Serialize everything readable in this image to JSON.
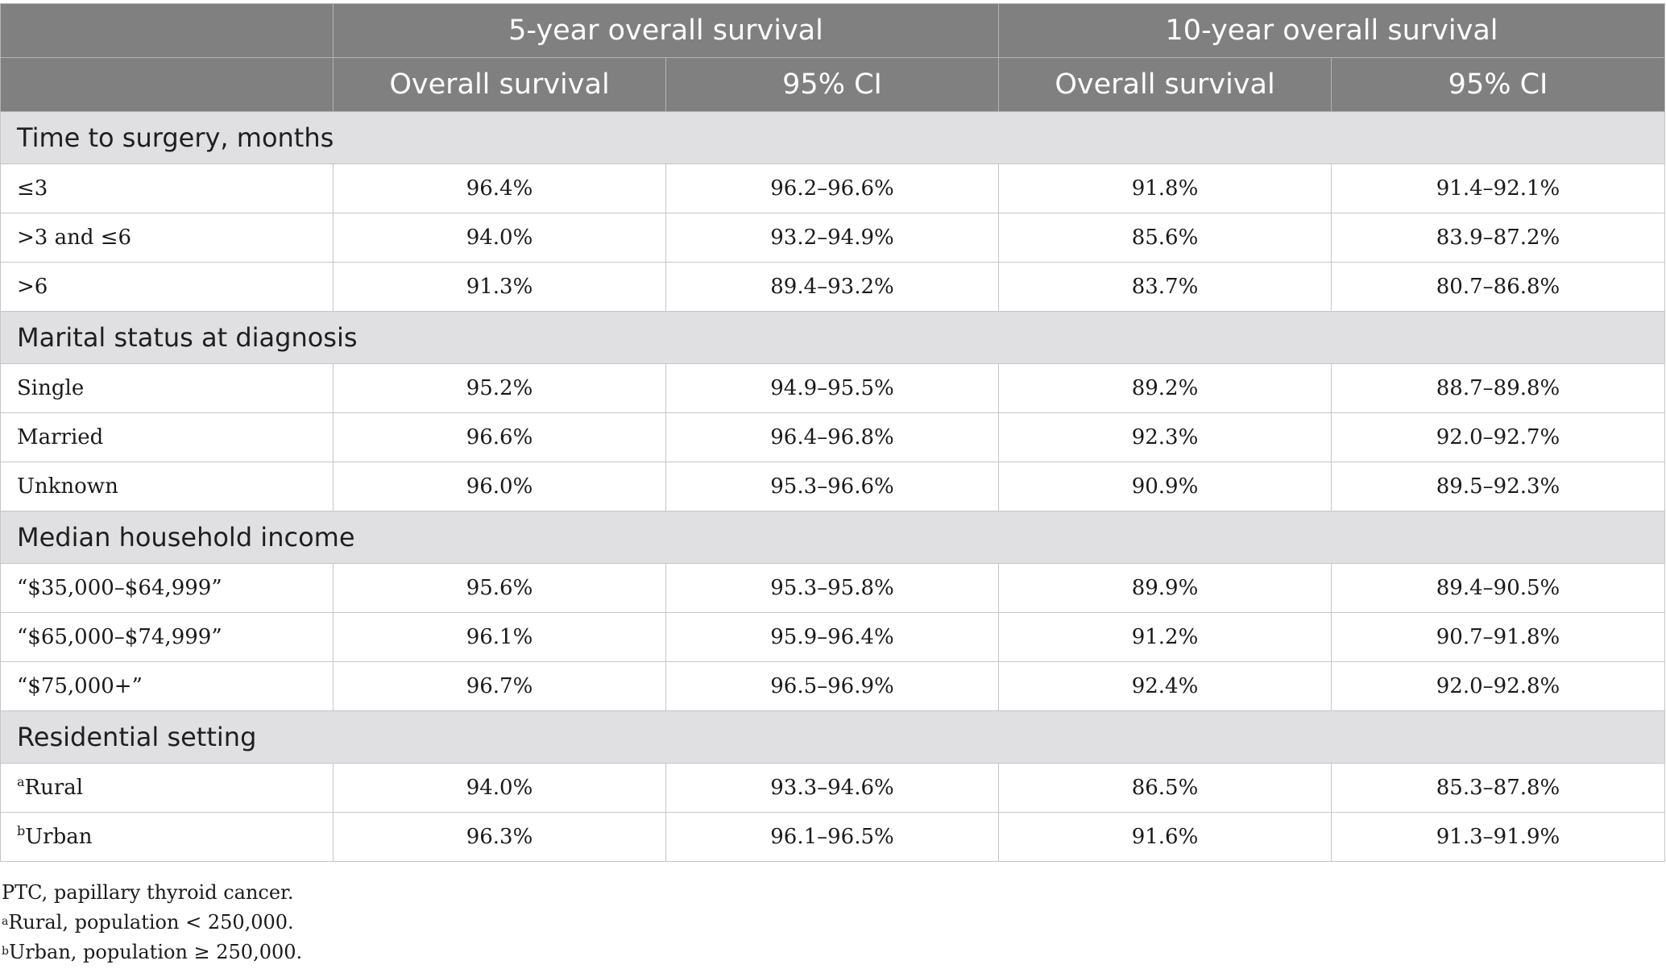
{
  "table": {
    "header_groups": [
      "5-year overall survival",
      "10-year overall survival"
    ],
    "subheaders": [
      "Overall survival",
      "95% CI",
      "Overall survival",
      "95% CI"
    ],
    "sections": [
      {
        "title": "Time to surgery, months",
        "rows": [
          {
            "sup": "",
            "label": "≤3",
            "cells": [
              "96.4%",
              "96.2–96.6%",
              "91.8%",
              "91.4–92.1%"
            ]
          },
          {
            "sup": "",
            "label": ">3 and ≤6",
            "cells": [
              "94.0%",
              "93.2–94.9%",
              "85.6%",
              "83.9–87.2%"
            ]
          },
          {
            "sup": "",
            "label": ">6",
            "cells": [
              "91.3%",
              "89.4–93.2%",
              "83.7%",
              "80.7–86.8%"
            ]
          }
        ]
      },
      {
        "title": "Marital status at diagnosis",
        "rows": [
          {
            "sup": "",
            "label": "Single",
            "cells": [
              "95.2%",
              "94.9–95.5%",
              "89.2%",
              "88.7–89.8%"
            ]
          },
          {
            "sup": "",
            "label": "Married",
            "cells": [
              "96.6%",
              "96.4–96.8%",
              "92.3%",
              "92.0–92.7%"
            ]
          },
          {
            "sup": "",
            "label": "Unknown",
            "cells": [
              "96.0%",
              "95.3–96.6%",
              "90.9%",
              "89.5–92.3%"
            ]
          }
        ]
      },
      {
        "title": "Median household income",
        "rows": [
          {
            "sup": "",
            "label": "“$35,000–$64,999”",
            "cells": [
              "95.6%",
              "95.3–95.8%",
              "89.9%",
              "89.4–90.5%"
            ]
          },
          {
            "sup": "",
            "label": "“$65,000–$74,999”",
            "cells": [
              "96.1%",
              "95.9–96.4%",
              "91.2%",
              "90.7–91.8%"
            ]
          },
          {
            "sup": "",
            "label": "“$75,000+”",
            "cells": [
              "96.7%",
              "96.5–96.9%",
              "92.4%",
              "92.0–92.8%"
            ]
          }
        ]
      },
      {
        "title": "Residential setting",
        "rows": [
          {
            "sup": "a",
            "label": "Rural",
            "cells": [
              "94.0%",
              "93.3–94.6%",
              "86.5%",
              "85.3–87.8%"
            ]
          },
          {
            "sup": "b",
            "label": "Urban",
            "cells": [
              "96.3%",
              "96.1–96.5%",
              "91.6%",
              "91.3–91.9%"
            ]
          }
        ]
      }
    ]
  },
  "footnotes": [
    {
      "sup": "",
      "text": "PTC, papillary thyroid cancer."
    },
    {
      "sup": "a",
      "text": "Rural, population < 250,000."
    },
    {
      "sup": "b",
      "text": "Urban, population ≥ 250,000."
    }
  ]
}
